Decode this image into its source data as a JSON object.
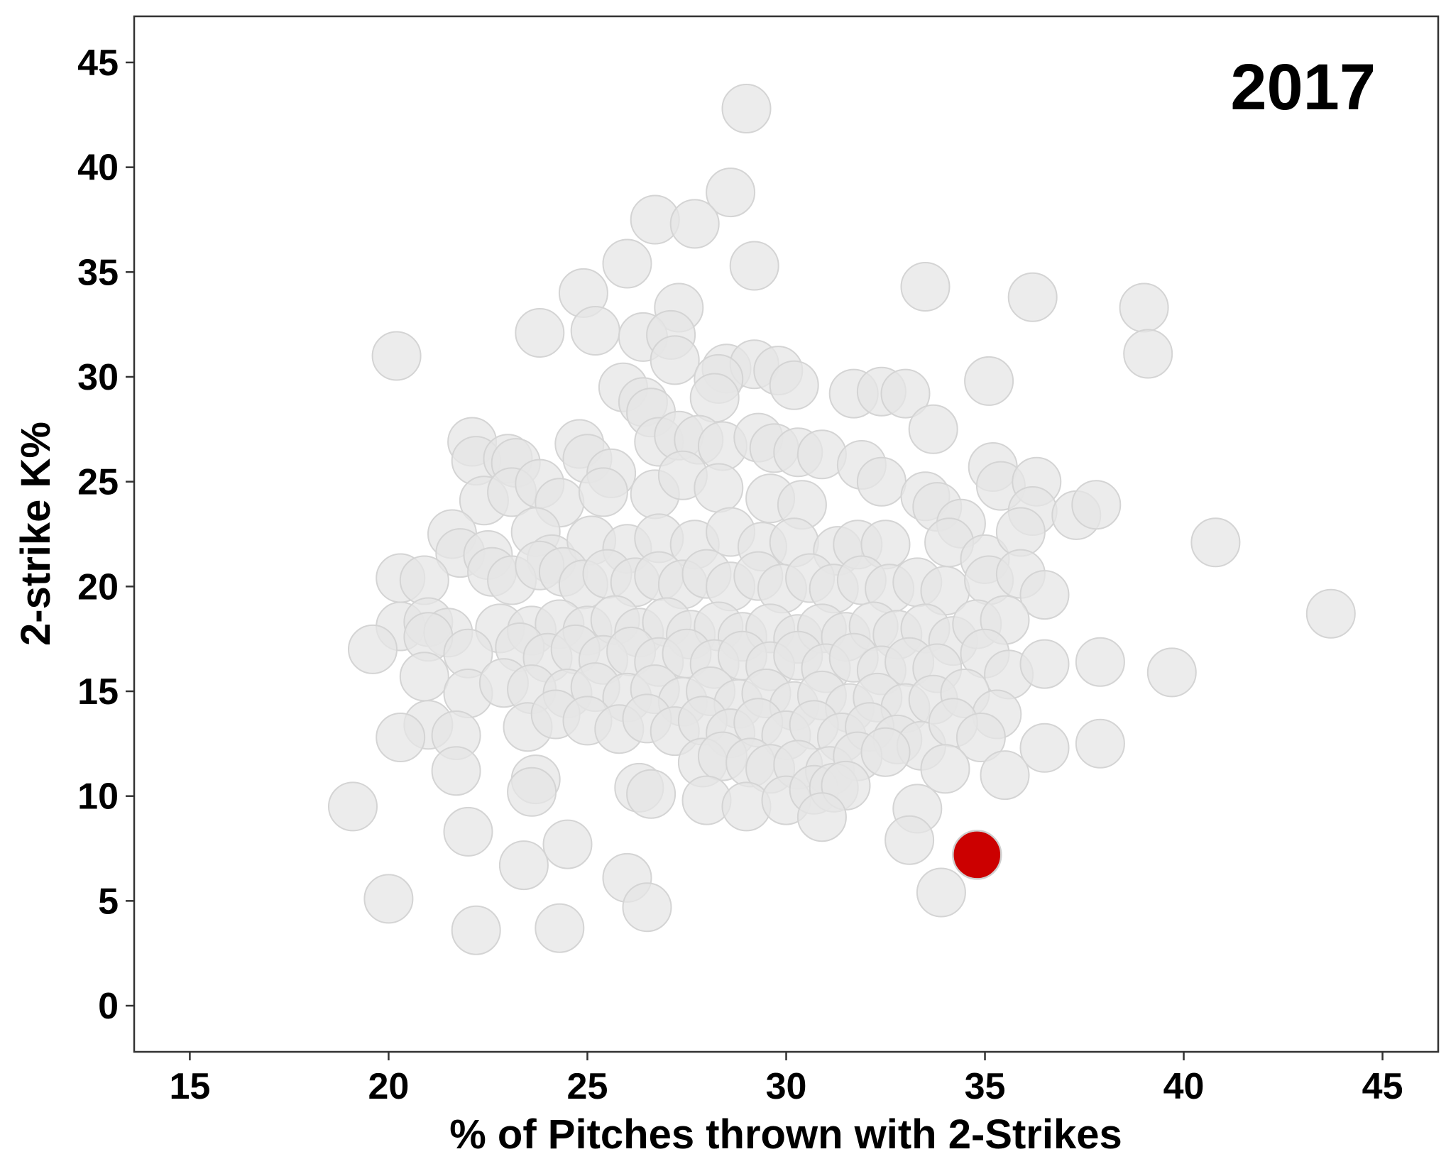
{
  "chart_data": {
    "type": "scatter",
    "annotation": "2017",
    "xlabel": "% of Pitches thrown with 2-Strikes",
    "ylabel": "2-strike K%",
    "xlim": [
      13.6,
      46.4
    ],
    "ylim": [
      -2.2,
      47.2
    ],
    "x_ticks": [
      15,
      20,
      25,
      30,
      35,
      40,
      45
    ],
    "y_ticks": [
      0,
      5,
      10,
      15,
      20,
      25,
      30,
      35,
      40,
      45
    ],
    "grid": false,
    "legend": "none",
    "colors": {
      "background_points": "#e6e6e6",
      "highlight": "#cc0000",
      "point_stroke": "#d4d4d4"
    },
    "series": [
      {
        "role": "all pitchers",
        "points": [
          [
            29.0,
            42.8
          ],
          [
            28.6,
            38.8
          ],
          [
            26.7,
            37.5
          ],
          [
            27.7,
            37.3
          ],
          [
            26.0,
            35.4
          ],
          [
            29.2,
            35.3
          ],
          [
            24.9,
            34.0
          ],
          [
            36.2,
            33.8
          ],
          [
            33.5,
            34.3
          ],
          [
            39.0,
            33.3
          ],
          [
            27.3,
            33.3
          ],
          [
            23.8,
            32.1
          ],
          [
            25.2,
            32.2
          ],
          [
            26.4,
            31.9
          ],
          [
            27.1,
            32.0
          ],
          [
            20.2,
            31.0
          ],
          [
            39.1,
            31.1
          ],
          [
            27.2,
            30.8
          ],
          [
            28.5,
            30.4
          ],
          [
            29.2,
            30.6
          ],
          [
            29.8,
            30.3
          ],
          [
            28.3,
            29.9
          ],
          [
            30.2,
            29.6
          ],
          [
            25.9,
            29.5
          ],
          [
            31.7,
            29.2
          ],
          [
            32.4,
            29.3
          ],
          [
            33.0,
            29.2
          ],
          [
            35.1,
            29.8
          ],
          [
            26.4,
            28.8
          ],
          [
            26.6,
            28.3
          ],
          [
            28.2,
            29.0
          ],
          [
            33.7,
            27.5
          ],
          [
            22.1,
            26.9
          ],
          [
            22.2,
            26.0
          ],
          [
            23.0,
            26.1
          ],
          [
            23.2,
            25.9
          ],
          [
            24.8,
            26.8
          ],
          [
            25.0,
            26.1
          ],
          [
            25.6,
            25.4
          ],
          [
            26.8,
            26.9
          ],
          [
            27.3,
            27.2
          ],
          [
            27.8,
            27.0
          ],
          [
            28.4,
            26.7
          ],
          [
            29.3,
            27.1
          ],
          [
            29.7,
            26.6
          ],
          [
            30.3,
            26.4
          ],
          [
            30.9,
            26.3
          ],
          [
            31.9,
            25.8
          ],
          [
            32.4,
            25.0
          ],
          [
            33.5,
            24.3
          ],
          [
            35.2,
            25.7
          ],
          [
            35.4,
            24.8
          ],
          [
            36.3,
            25.0
          ],
          [
            22.4,
            24.1
          ],
          [
            23.1,
            24.5
          ],
          [
            23.8,
            24.9
          ],
          [
            24.3,
            24.0
          ],
          [
            25.4,
            24.5
          ],
          [
            26.7,
            24.4
          ],
          [
            27.4,
            25.3
          ],
          [
            28.3,
            24.7
          ],
          [
            29.6,
            24.2
          ],
          [
            30.4,
            23.9
          ],
          [
            33.8,
            23.8
          ],
          [
            34.4,
            23.0
          ],
          [
            36.2,
            23.6
          ],
          [
            37.3,
            23.4
          ],
          [
            37.8,
            23.9
          ],
          [
            21.6,
            22.5
          ],
          [
            21.8,
            21.6
          ],
          [
            22.5,
            21.5
          ],
          [
            23.7,
            22.6
          ],
          [
            24.1,
            21.3
          ],
          [
            25.1,
            22.2
          ],
          [
            26.0,
            21.8
          ],
          [
            26.8,
            22.3
          ],
          [
            27.7,
            22.0
          ],
          [
            28.6,
            22.6
          ],
          [
            29.4,
            21.9
          ],
          [
            30.2,
            22.1
          ],
          [
            31.3,
            21.7
          ],
          [
            31.8,
            22.0
          ],
          [
            32.5,
            22.0
          ],
          [
            34.1,
            22.1
          ],
          [
            35.0,
            21.3
          ],
          [
            35.9,
            22.6
          ],
          [
            40.8,
            22.1
          ],
          [
            20.3,
            20.4
          ],
          [
            20.9,
            20.3
          ],
          [
            22.6,
            20.7
          ],
          [
            23.1,
            20.3
          ],
          [
            23.8,
            21.0
          ],
          [
            24.4,
            20.7
          ],
          [
            24.9,
            20.1
          ],
          [
            25.5,
            20.6
          ],
          [
            26.2,
            20.2
          ],
          [
            26.8,
            20.5
          ],
          [
            27.4,
            20.1
          ],
          [
            28.0,
            20.6
          ],
          [
            28.6,
            20.0
          ],
          [
            29.3,
            20.5
          ],
          [
            29.9,
            19.9
          ],
          [
            30.6,
            20.4
          ],
          [
            31.2,
            19.9
          ],
          [
            31.9,
            20.3
          ],
          [
            32.6,
            19.9
          ],
          [
            33.3,
            20.2
          ],
          [
            34.0,
            19.8
          ],
          [
            35.1,
            20.3
          ],
          [
            35.9,
            20.6
          ],
          [
            36.5,
            19.6
          ],
          [
            43.7,
            18.7
          ],
          [
            20.3,
            18.1
          ],
          [
            21.0,
            18.3
          ],
          [
            21.5,
            17.8
          ],
          [
            22.8,
            18.0
          ],
          [
            23.6,
            17.9
          ],
          [
            24.3,
            18.2
          ],
          [
            25.0,
            17.9
          ],
          [
            25.7,
            18.4
          ],
          [
            26.3,
            17.8
          ],
          [
            27.0,
            18.3
          ],
          [
            27.6,
            17.7
          ],
          [
            28.3,
            18.1
          ],
          [
            28.9,
            17.6
          ],
          [
            29.6,
            18.0
          ],
          [
            30.3,
            17.5
          ],
          [
            30.9,
            18.0
          ],
          [
            31.5,
            17.6
          ],
          [
            32.2,
            18.1
          ],
          [
            32.8,
            17.7
          ],
          [
            33.5,
            18.0
          ],
          [
            34.2,
            17.4
          ],
          [
            34.8,
            18.2
          ],
          [
            35.5,
            18.4
          ],
          [
            19.6,
            17.0
          ],
          [
            21.0,
            17.6
          ],
          [
            22.0,
            16.8
          ],
          [
            23.3,
            17.1
          ],
          [
            24.0,
            16.6
          ],
          [
            24.7,
            17.0
          ],
          [
            25.4,
            16.5
          ],
          [
            26.1,
            16.9
          ],
          [
            26.8,
            16.4
          ],
          [
            27.5,
            16.8
          ],
          [
            28.2,
            16.3
          ],
          [
            28.9,
            16.7
          ],
          [
            29.6,
            16.2
          ],
          [
            30.3,
            16.7
          ],
          [
            31.0,
            16.1
          ],
          [
            31.7,
            16.6
          ],
          [
            32.4,
            16.0
          ],
          [
            33.1,
            16.4
          ],
          [
            33.8,
            16.1
          ],
          [
            35.0,
            16.8
          ],
          [
            35.6,
            15.8
          ],
          [
            36.5,
            16.3
          ],
          [
            37.9,
            16.4
          ],
          [
            39.7,
            15.9
          ],
          [
            20.9,
            15.7
          ],
          [
            22.0,
            14.9
          ],
          [
            22.9,
            15.4
          ],
          [
            23.6,
            15.1
          ],
          [
            24.5,
            14.9
          ],
          [
            25.2,
            15.2
          ],
          [
            26.0,
            14.7
          ],
          [
            26.7,
            15.1
          ],
          [
            27.4,
            14.5
          ],
          [
            28.1,
            15.0
          ],
          [
            28.8,
            14.4
          ],
          [
            29.5,
            14.9
          ],
          [
            30.2,
            14.3
          ],
          [
            30.9,
            14.8
          ],
          [
            31.6,
            14.2
          ],
          [
            32.3,
            14.7
          ],
          [
            33.0,
            14.2
          ],
          [
            33.7,
            14.6
          ],
          [
            34.5,
            14.9
          ],
          [
            35.3,
            13.9
          ],
          [
            21.0,
            13.4
          ],
          [
            21.7,
            12.9
          ],
          [
            23.5,
            13.3
          ],
          [
            24.2,
            13.9
          ],
          [
            25.0,
            13.6
          ],
          [
            25.8,
            13.2
          ],
          [
            26.5,
            13.7
          ],
          [
            27.2,
            13.1
          ],
          [
            27.9,
            13.6
          ],
          [
            28.6,
            13.0
          ],
          [
            29.3,
            13.5
          ],
          [
            30.0,
            12.9
          ],
          [
            30.7,
            13.4
          ],
          [
            31.4,
            12.8
          ],
          [
            32.1,
            13.3
          ],
          [
            32.8,
            12.7
          ],
          [
            33.4,
            12.4
          ],
          [
            34.2,
            13.5
          ],
          [
            34.9,
            12.8
          ],
          [
            36.5,
            12.3
          ],
          [
            37.9,
            12.5
          ],
          [
            20.3,
            12.8
          ],
          [
            21.7,
            11.2
          ],
          [
            23.7,
            10.8
          ],
          [
            23.6,
            10.2
          ],
          [
            26.3,
            10.4
          ],
          [
            26.6,
            10.1
          ],
          [
            27.9,
            11.6
          ],
          [
            28.4,
            11.9
          ],
          [
            29.1,
            11.6
          ],
          [
            29.6,
            11.3
          ],
          [
            30.3,
            11.5
          ],
          [
            31.1,
            11.2
          ],
          [
            31.8,
            11.9
          ],
          [
            32.5,
            12.1
          ],
          [
            34.0,
            11.3
          ],
          [
            35.5,
            11.0
          ],
          [
            19.1,
            9.5
          ],
          [
            28.0,
            9.8
          ],
          [
            29.0,
            9.5
          ],
          [
            30.0,
            9.8
          ],
          [
            30.7,
            10.3
          ],
          [
            31.2,
            10.4
          ],
          [
            31.5,
            10.5
          ],
          [
            30.9,
            9.0
          ],
          [
            33.3,
            9.4
          ],
          [
            33.1,
            7.9
          ],
          [
            22.0,
            8.3
          ],
          [
            24.5,
            7.7
          ],
          [
            23.4,
            6.7
          ],
          [
            26.0,
            6.1
          ],
          [
            26.5,
            4.7
          ],
          [
            20.0,
            5.1
          ],
          [
            22.2,
            3.6
          ],
          [
            24.3,
            3.7
          ],
          [
            33.9,
            5.4
          ]
        ]
      },
      {
        "role": "highlighted pitcher",
        "points": [
          [
            34.8,
            7.2
          ]
        ]
      }
    ]
  }
}
